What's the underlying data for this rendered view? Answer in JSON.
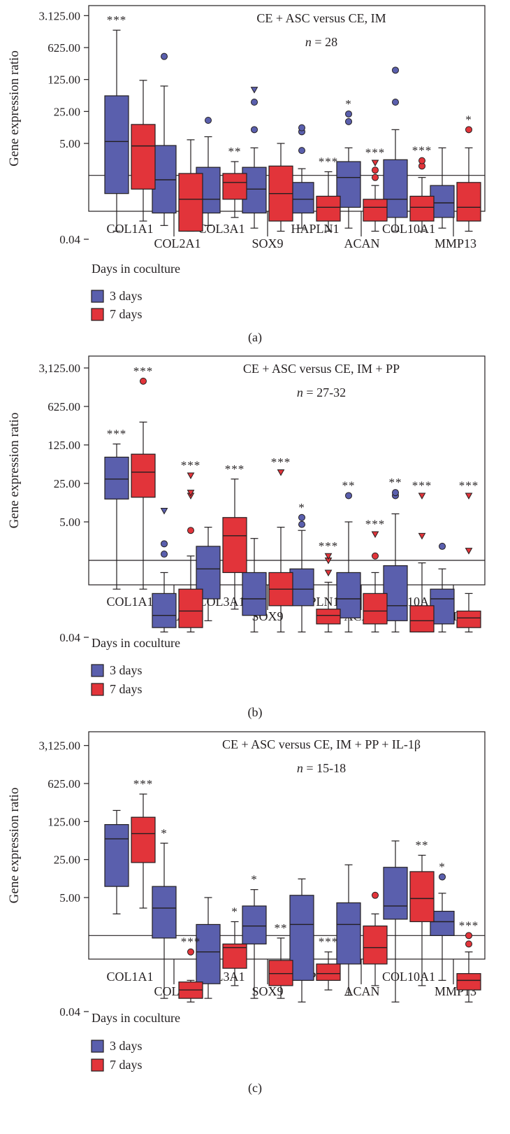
{
  "chart_data": [
    {
      "type": "box",
      "panel_label": "(a)",
      "title": "CE + ASC versus CE, IM",
      "subtitle": "n = 28",
      "ylabel": "Gene expression ratio",
      "yscale": "log5",
      "ylim": [
        0.008,
        3125
      ],
      "yticks": [
        0.04,
        5,
        25,
        125,
        625,
        3125
      ],
      "ytick_labels": [
        "0.04",
        "5.00",
        "25.00",
        "125.00",
        "625.00",
        "3.125.00"
      ],
      "reference_line": 1,
      "categories": [
        "COL1A1",
        "COL2A1",
        "COL3A1",
        "SOX9",
        "HAPLN1",
        "ACAN",
        "COL10A1",
        "MMP13"
      ],
      "series": [
        {
          "name": "3 days",
          "color": "#5a5fad",
          "boxes": [
            {
              "whisker_low": 0.06,
              "q1": 0.4,
              "median": 5.5,
              "q3": 55,
              "whisker_high": 1500,
              "stars": "***",
              "outliers": []
            },
            {
              "whisker_low": 0.08,
              "q1": 0.15,
              "median": 0.8,
              "q3": 4.5,
              "whisker_high": 90,
              "stars": "",
              "outliers": [
                {
                  "v": 400,
                  "shape": "circle"
                }
              ]
            },
            {
              "whisker_low": 0.08,
              "q1": 0.15,
              "median": 0.3,
              "q3": 1.5,
              "whisker_high": 7,
              "stars": "",
              "outliers": [
                {
                  "v": 16,
                  "shape": "circle"
                }
              ]
            },
            {
              "whisker_low": 0.07,
              "q1": 0.15,
              "median": 0.5,
              "q3": 1.5,
              "whisker_high": 4,
              "stars": "",
              "outliers": [
                {
                  "v": 10,
                  "shape": "circle"
                },
                {
                  "v": 40,
                  "shape": "circle"
                },
                {
                  "v": 75,
                  "shape": "triangle"
                }
              ]
            },
            {
              "whisker_low": 0.07,
              "q1": 0.15,
              "median": 0.3,
              "q3": 0.7,
              "whisker_high": 1.4,
              "stars": "",
              "outliers": [
                {
                  "v": 3.5,
                  "shape": "circle"
                },
                {
                  "v": 9,
                  "shape": "circle"
                },
                {
                  "v": 11,
                  "shape": "circle"
                }
              ]
            },
            {
              "whisker_low": 0.07,
              "q1": 0.2,
              "median": 0.9,
              "q3": 2,
              "whisker_high": 4,
              "stars": "*",
              "outliers": [
                {
                  "v": 15,
                  "shape": "circle"
                },
                {
                  "v": 22,
                  "shape": "circle"
                }
              ]
            },
            {
              "whisker_low": 0.06,
              "q1": 0.12,
              "median": 0.3,
              "q3": 2.2,
              "whisker_high": 10,
              "stars": "",
              "outliers": [
                {
                  "v": 40,
                  "shape": "circle"
                },
                {
                  "v": 200,
                  "shape": "circle"
                }
              ]
            },
            {
              "whisker_low": 0.07,
              "q1": 0.12,
              "median": 0.25,
              "q3": 0.6,
              "whisker_high": 4,
              "stars": "",
              "outliers": []
            }
          ]
        },
        {
          "name": "7 days",
          "color": "#e2343a",
          "boxes": [
            {
              "whisker_low": 0.1,
              "q1": 0.5,
              "median": 4.4,
              "q3": 13,
              "whisker_high": 120,
              "stars": "",
              "outliers": []
            },
            {
              "whisker_low": 0.06,
              "q1": 0.06,
              "median": 0.3,
              "q3": 1.1,
              "whisker_high": 6,
              "stars": "",
              "outliers": []
            },
            {
              "whisker_low": 0.12,
              "q1": 0.3,
              "median": 0.7,
              "q3": 1.1,
              "whisker_high": 2,
              "stars": "**",
              "outliers": []
            },
            {
              "whisker_low": 0.06,
              "q1": 0.1,
              "median": 0.4,
              "q3": 1.6,
              "whisker_high": 5,
              "stars": "",
              "outliers": []
            },
            {
              "whisker_low": 0.06,
              "q1": 0.1,
              "median": 0.2,
              "q3": 0.35,
              "whisker_high": 1.2,
              "stars": "***",
              "outliers": []
            },
            {
              "whisker_low": 0.06,
              "q1": 0.1,
              "median": 0.2,
              "q3": 0.3,
              "whisker_high": 0.6,
              "stars": "***",
              "outliers": [
                {
                  "v": 0.9,
                  "shape": "circle"
                },
                {
                  "v": 1.3,
                  "shape": "circle"
                },
                {
                  "v": 1.9,
                  "shape": "triangle"
                }
              ]
            },
            {
              "whisker_low": 0.06,
              "q1": 0.1,
              "median": 0.2,
              "q3": 0.35,
              "whisker_high": 0.9,
              "stars": "***",
              "outliers": [
                {
                  "v": 1.6,
                  "shape": "circle"
                },
                {
                  "v": 2.1,
                  "shape": "circle"
                }
              ]
            },
            {
              "whisker_low": 0.06,
              "q1": 0.1,
              "median": 0.2,
              "q3": 0.7,
              "whisker_high": 4,
              "stars": "*",
              "outliers": [
                {
                  "v": 10,
                  "shape": "circle"
                }
              ]
            }
          ]
        }
      ],
      "legend": {
        "title": "Days in coculture",
        "items": [
          "3 days",
          "7 days"
        ]
      }
    },
    {
      "type": "box",
      "panel_label": "(b)",
      "title": "CE + ASC versus CE, IM + PP",
      "subtitle": "n = 27-32",
      "ylabel": "Gene expression ratio",
      "yscale": "log5",
      "ylim": [
        0.008,
        3125
      ],
      "yticks": [
        0.04,
        5,
        25,
        125,
        625,
        3125
      ],
      "ytick_labels": [
        "0.04",
        "5.00",
        "25.00",
        "125.00",
        "625.00",
        "3,125.00"
      ],
      "reference_line": 1,
      "categories": [
        "COL1A1",
        "COL2A1",
        "COL3A1",
        "SOX9",
        "HAPLN1",
        "ACAN",
        "COL10A1",
        "MMP13"
      ],
      "series": [
        {
          "name": "3 days",
          "color": "#5a5fad",
          "boxes": [
            {
              "whisker_low": 0.3,
              "q1": 13,
              "median": 30,
              "q3": 75,
              "whisker_high": 130,
              "stars": "***",
              "outliers": []
            },
            {
              "whisker_low": 0.05,
              "q1": 0.06,
              "median": 0.1,
              "q3": 0.25,
              "whisker_high": 0.6,
              "stars": "",
              "outliers": [
                {
                  "v": 1.3,
                  "shape": "circle"
                },
                {
                  "v": 2,
                  "shape": "circle"
                },
                {
                  "v": 8,
                  "shape": "triangle"
                }
              ]
            },
            {
              "whisker_low": 0.08,
              "q1": 0.2,
              "median": 0.7,
              "q3": 1.8,
              "whisker_high": 4,
              "stars": "",
              "outliers": []
            },
            {
              "whisker_low": 0.05,
              "q1": 0.1,
              "median": 0.2,
              "q3": 0.6,
              "whisker_high": 2.5,
              "stars": "",
              "outliers": []
            },
            {
              "whisker_low": 0.05,
              "q1": 0.15,
              "median": 0.3,
              "q3": 0.7,
              "whisker_high": 3.5,
              "stars": "*",
              "outliers": [
                {
                  "v": 4.5,
                  "shape": "circle"
                },
                {
                  "v": 6,
                  "shape": "circle"
                }
              ]
            },
            {
              "whisker_low": 0.05,
              "q1": 0.09,
              "median": 0.2,
              "q3": 0.6,
              "whisker_high": 5,
              "stars": "**",
              "outliers": [
                {
                  "v": 15,
                  "shape": "circle"
                }
              ]
            },
            {
              "whisker_low": 0.05,
              "q1": 0.08,
              "median": 0.15,
              "q3": 0.8,
              "whisker_high": 7,
              "stars": "**",
              "outliers": [
                {
                  "v": 15,
                  "shape": "circle"
                },
                {
                  "v": 17,
                  "shape": "circle"
                }
              ]
            },
            {
              "whisker_low": 0.05,
              "q1": 0.07,
              "median": 0.2,
              "q3": 0.3,
              "whisker_high": 0.7,
              "stars": "",
              "outliers": [
                {
                  "v": 1.8,
                  "shape": "circle"
                }
              ]
            }
          ]
        },
        {
          "name": "7 days",
          "color": "#e2343a",
          "boxes": [
            {
              "whisker_low": 0.3,
              "q1": 14,
              "median": 40,
              "q3": 85,
              "whisker_high": 325,
              "stars": "***",
              "outliers": [
                {
                  "v": 1800,
                  "shape": "circle"
                }
              ]
            },
            {
              "whisker_low": 0.05,
              "q1": 0.06,
              "median": 0.12,
              "q3": 0.3,
              "whisker_high": 1.2,
              "stars": "***",
              "outliers": [
                {
                  "v": 3.5,
                  "shape": "circle"
                },
                {
                  "v": 15,
                  "shape": "triangle"
                },
                {
                  "v": 17,
                  "shape": "triangle"
                },
                {
                  "v": 35,
                  "shape": "triangle"
                }
              ]
            },
            {
              "whisker_low": 0.13,
              "q1": 0.6,
              "median": 2.8,
              "q3": 6,
              "whisker_high": 30,
              "stars": "***",
              "outliers": []
            },
            {
              "whisker_low": 0.05,
              "q1": 0.15,
              "median": 0.3,
              "q3": 0.6,
              "whisker_high": 4,
              "stars": "***",
              "outliers": [
                {
                  "v": 40,
                  "shape": "triangle"
                }
              ]
            },
            {
              "whisker_low": 0.05,
              "q1": 0.07,
              "median": 0.1,
              "q3": 0.13,
              "whisker_high": 0.4,
              "stars": "***",
              "outliers": [
                {
                  "v": 0.6,
                  "shape": "triangle"
                },
                {
                  "v": 1,
                  "shape": "triangle"
                },
                {
                  "v": 1.2,
                  "shape": "triangle"
                }
              ]
            },
            {
              "whisker_low": 0.05,
              "q1": 0.07,
              "median": 0.12,
              "q3": 0.25,
              "whisker_high": 0.6,
              "stars": "***",
              "outliers": [
                {
                  "v": 1.2,
                  "shape": "circle"
                },
                {
                  "v": 3,
                  "shape": "triangle"
                }
              ]
            },
            {
              "whisker_low": 0.05,
              "q1": 0.05,
              "median": 0.08,
              "q3": 0.15,
              "whisker_high": 0.9,
              "stars": "***",
              "outliers": [
                {
                  "v": 2.8,
                  "shape": "triangle"
                },
                {
                  "v": 15,
                  "shape": "triangle"
                }
              ]
            },
            {
              "whisker_low": 0.05,
              "q1": 0.06,
              "median": 0.09,
              "q3": 0.12,
              "whisker_high": 0.25,
              "stars": "***",
              "outliers": [
                {
                  "v": 1.5,
                  "shape": "triangle"
                },
                {
                  "v": 15,
                  "shape": "triangle"
                }
              ]
            }
          ]
        }
      ],
      "legend": {
        "title": "Days in coculture",
        "items": [
          "3 days",
          "7 days"
        ]
      }
    },
    {
      "type": "box",
      "panel_label": "(c)",
      "title": "CE + ASC versus CE, IM + PP + IL-1β",
      "subtitle": "n = 15-18",
      "ylabel": "Gene expression ratio",
      "yscale": "log5",
      "ylim": [
        0.008,
        3125
      ],
      "yticks": [
        0.04,
        5,
        25,
        125,
        625,
        3125
      ],
      "ytick_labels": [
        "0.04",
        "5.00",
        "25.00",
        "125.00",
        "625.00",
        "3,125.00"
      ],
      "reference_line": 1,
      "categories": [
        "COL1A1",
        "COL2A1",
        "COL3A1",
        "SOX9",
        "HAPLN1",
        "ACAN",
        "COL10A1",
        "MMP13"
      ],
      "series": [
        {
          "name": "3 days",
          "color": "#5a5fad",
          "boxes": [
            {
              "whisker_low": 2.5,
              "q1": 8,
              "median": 60,
              "q3": 110,
              "whisker_high": 200,
              "stars": "",
              "outliers": []
            },
            {
              "whisker_low": 0.07,
              "q1": 0.9,
              "median": 3.2,
              "q3": 8,
              "whisker_high": 50,
              "stars": "*",
              "outliers": []
            },
            {
              "whisker_low": 0.07,
              "q1": 0.13,
              "median": 0.5,
              "q3": 1.6,
              "whisker_high": 5,
              "stars": "",
              "outliers": []
            },
            {
              "whisker_low": 0.07,
              "q1": 0.7,
              "median": 1.5,
              "q3": 3.5,
              "whisker_high": 7,
              "stars": "*",
              "outliers": []
            },
            {
              "whisker_low": 0.06,
              "q1": 0.15,
              "median": 1.6,
              "q3": 5.5,
              "whisker_high": 11,
              "stars": "",
              "outliers": []
            },
            {
              "whisker_low": 0.08,
              "q1": 0.3,
              "median": 1.6,
              "q3": 4,
              "whisker_high": 20,
              "stars": "",
              "outliers": []
            },
            {
              "whisker_low": 0.06,
              "q1": 2,
              "median": 3.5,
              "q3": 18,
              "whisker_high": 55,
              "stars": "",
              "outliers": []
            },
            {
              "whisker_low": 0.15,
              "q1": 1,
              "median": 1.8,
              "q3": 2.8,
              "whisker_high": 6,
              "stars": "*",
              "outliers": [
                {
                  "v": 12,
                  "shape": "circle"
                }
              ]
            }
          ]
        },
        {
          "name": "7 days",
          "color": "#e2343a",
          "boxes": [
            {
              "whisker_low": 3.2,
              "q1": 22,
              "median": 75,
              "q3": 150,
              "whisker_high": 400,
              "stars": "***",
              "outliers": []
            },
            {
              "whisker_low": 0.06,
              "q1": 0.07,
              "median": 0.1,
              "q3": 0.14,
              "whisker_high": 0.15,
              "stars": "***",
              "outliers": [
                {
                  "v": 0.5,
                  "shape": "circle"
                }
              ]
            },
            {
              "whisker_low": 0.12,
              "q1": 0.25,
              "median": 0.6,
              "q3": 0.7,
              "whisker_high": 1.8,
              "stars": "*",
              "outliers": []
            },
            {
              "whisker_low": 0.07,
              "q1": 0.12,
              "median": 0.2,
              "q3": 0.35,
              "whisker_high": 0.9,
              "stars": "**",
              "outliers": []
            },
            {
              "whisker_low": 0.1,
              "q1": 0.15,
              "median": 0.2,
              "q3": 0.3,
              "whisker_high": 0.5,
              "stars": "***",
              "outliers": []
            },
            {
              "whisker_low": 0.12,
              "q1": 0.3,
              "median": 0.6,
              "q3": 1.5,
              "whisker_high": 2.5,
              "stars": "",
              "outliers": [
                {
                  "v": 5.5,
                  "shape": "circle"
                }
              ]
            },
            {
              "whisker_low": 0.12,
              "q1": 1.8,
              "median": 4.8,
              "q3": 15,
              "whisker_high": 30,
              "stars": "**",
              "outliers": []
            },
            {
              "whisker_low": 0.06,
              "q1": 0.1,
              "median": 0.15,
              "q3": 0.2,
              "whisker_high": 0.5,
              "stars": "***",
              "outliers": [
                {
                  "v": 0.7,
                  "shape": "circle"
                },
                {
                  "v": 1,
                  "shape": "circle"
                }
              ]
            }
          ]
        }
      ],
      "legend": {
        "title": "Days in coculture",
        "items": [
          "3 days",
          "7 days"
        ]
      }
    }
  ]
}
